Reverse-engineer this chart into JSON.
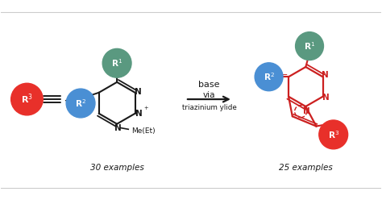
{
  "bg_color": "#ffffff",
  "border_color": "#cccccc",
  "red_color": "#e8302a",
  "green_color": "#5a9980",
  "blue_color": "#4a8fd4",
  "black_color": "#1a1a1a",
  "dark_red_color": "#cc2020",
  "label_30": "30 examples",
  "label_25": "25 examples",
  "base_text": "base",
  "via_text": "via",
  "triazinium_text": "triazinium ylide"
}
